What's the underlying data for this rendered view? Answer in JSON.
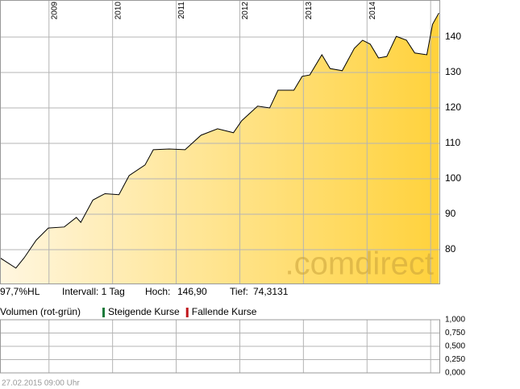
{
  "chart_data": [
    {
      "type": "line",
      "watermark": ".comdirect",
      "x": [
        2008.23,
        2008.48,
        2008.61,
        2008.8,
        2008.99,
        2009.24,
        2009.43,
        2009.5,
        2009.69,
        2009.88,
        2010.1,
        2010.26,
        2010.51,
        2010.64,
        2010.89,
        2011.14,
        2011.39,
        2011.65,
        2011.9,
        2012.03,
        2012.28,
        2012.47,
        2012.6,
        2012.85,
        2012.98,
        2013.1,
        2013.29,
        2013.42,
        2013.61,
        2013.8,
        2013.93,
        2014.05,
        2014.18,
        2014.31,
        2014.46,
        2014.62,
        2014.75,
        2014.94,
        2015.03,
        2015.13
      ],
      "series": [
        {
          "color": "#000000",
          "fill": "#ffd23c",
          "values": [
            77.7,
            74.8,
            77.7,
            82.7,
            86.1,
            86.4,
            89.1,
            87.7,
            94.0,
            95.8,
            95.5,
            100.9,
            103.9,
            108.2,
            108.4,
            108.2,
            112.3,
            114.1,
            113.0,
            116.4,
            120.5,
            120.0,
            125.0,
            125.0,
            128.9,
            129.3,
            135.0,
            131.1,
            130.5,
            136.8,
            139.1,
            138.0,
            134.1,
            134.5,
            140.2,
            139.1,
            135.5,
            135.0,
            143.6,
            146.8
          ]
        }
      ],
      "xlim": [
        2008.23,
        2015.15
      ],
      "xticks": [
        2009,
        2010,
        2011,
        2012,
        2013,
        2014,
        2015
      ],
      "xtick_labels": [
        "2009",
        "2010",
        "2011",
        "2012",
        "2013",
        "2014"
      ],
      "ylim": [
        70.45,
        150.45
      ],
      "yticks": [
        80,
        90,
        100,
        110,
        120,
        130,
        140
      ],
      "grid": true
    },
    {
      "type": "bar",
      "title": "Volumen (rot-grün)",
      "series": [
        {
          "name": "Steigende Kurse",
          "color": "#1a7a3a",
          "values": []
        },
        {
          "name": "Fallende Kurse",
          "color": "#c0151b",
          "values": []
        }
      ],
      "xlim": [
        2008.23,
        2015.15
      ],
      "xticks": [
        2009,
        2010,
        2011,
        2012,
        2013,
        2014,
        2015
      ],
      "ylim": [
        0,
        1
      ],
      "yticks": [
        {
          "value": 1,
          "label": "1,000"
        },
        {
          "value": 0.75,
          "label": "0,750"
        },
        {
          "value": 0.5,
          "label": "0,500"
        },
        {
          "value": 0.25,
          "label": "0,250"
        },
        {
          "value": 0,
          "label": "0,000"
        }
      ],
      "grid": true
    }
  ],
  "info": {
    "range": "97,7%HL",
    "interval": "Intervall: 1 Tag",
    "high_label": "Hoch:",
    "high": "146,90",
    "low_label": "Tief:",
    "low": "74,3131"
  },
  "footer": "27.02.2015 09:00 Uhr"
}
